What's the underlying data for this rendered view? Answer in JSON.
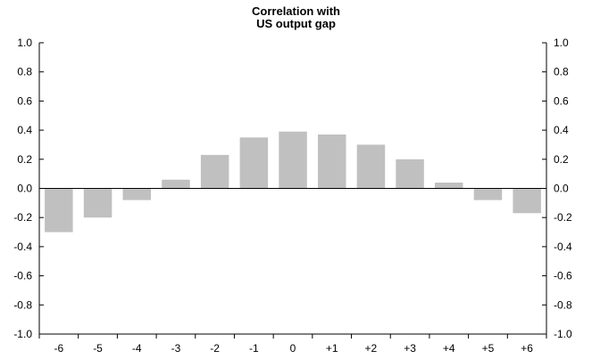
{
  "chart_data": {
    "type": "bar",
    "title": "Correlation with",
    "subtitle": "US output gap",
    "xlabel": "",
    "ylabel": "",
    "categories": [
      "-6",
      "-5",
      "-4",
      "-3",
      "-2",
      "-1",
      "0",
      "+1",
      "+2",
      "+3",
      "+4",
      "+5",
      "+6"
    ],
    "values": [
      -0.3,
      -0.2,
      -0.08,
      0.06,
      0.23,
      0.35,
      0.39,
      0.37,
      0.3,
      0.2,
      0.04,
      -0.08,
      -0.17
    ],
    "ylim": [
      -1.0,
      1.0
    ],
    "yticks": [
      "-1.0",
      "-0.8",
      "-0.6",
      "-0.4",
      "-0.2",
      "0.0",
      "0.2",
      "0.4",
      "0.6",
      "0.8",
      "1.0"
    ],
    "right_axis_mirrors_left": true,
    "grid": false,
    "legend": "none",
    "bar_color": "#c0c0c0"
  }
}
